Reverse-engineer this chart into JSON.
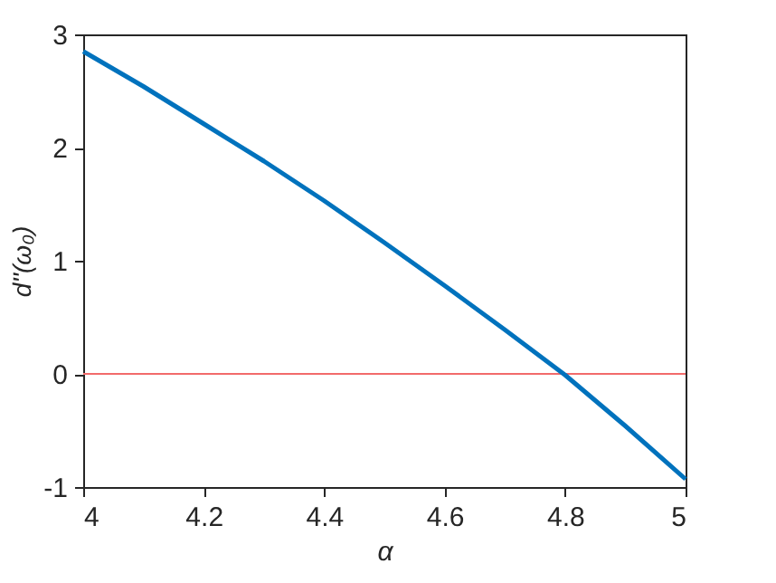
{
  "chart_data": {
    "type": "line",
    "xlabel": "α",
    "ylabel": "d''(ω₀)",
    "x": [
      4.0,
      4.1,
      4.2,
      4.3,
      4.4,
      4.5,
      4.6,
      4.7,
      4.8,
      4.9,
      5.0
    ],
    "series": [
      {
        "color": "#0072bd",
        "values": [
          2.85,
          2.54,
          2.21,
          1.88,
          1.53,
          1.16,
          0.78,
          0.39,
          -0.01,
          -0.46,
          -0.93
        ]
      }
    ],
    "xlim": [
      4,
      5
    ],
    "xticks": [
      4,
      4.2,
      4.4,
      4.6,
      4.8,
      5
    ],
    "ylim": [
      -1,
      3
    ],
    "yticks": [
      {
        "value": -1,
        "label": "-1"
      },
      0,
      1,
      2,
      3
    ],
    "ref_lines": [
      {
        "axis": "y",
        "value": 0,
        "color": "#f26b6b"
      }
    ],
    "grid": false,
    "marker": "none",
    "line_style": "solid"
  }
}
